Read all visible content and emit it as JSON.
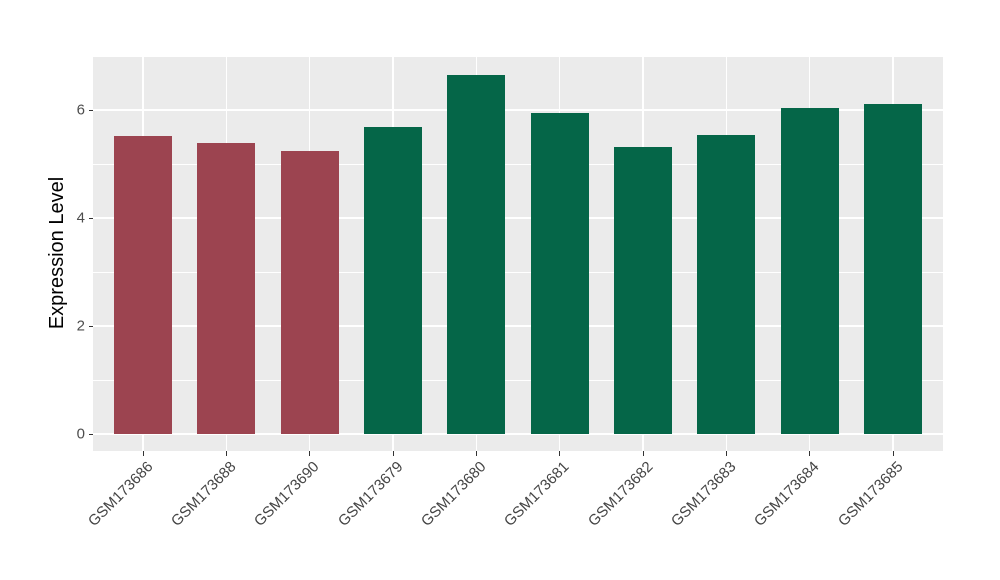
{
  "chart_data": {
    "type": "bar",
    "title": "",
    "xlabel": "",
    "ylabel": "Expression Level",
    "categories": [
      "GSM173686",
      "GSM173688",
      "GSM173690",
      "GSM173679",
      "GSM173680",
      "GSM173681",
      "GSM173682",
      "GSM173683",
      "GSM173684",
      "GSM173685"
    ],
    "values": [
      5.52,
      5.38,
      5.25,
      5.68,
      6.65,
      5.94,
      5.31,
      5.54,
      6.03,
      6.12
    ],
    "bar_colors": [
      "#9C4450",
      "#9C4450",
      "#9C4450",
      "#056648",
      "#056648",
      "#056648",
      "#056648",
      "#056648",
      "#056648",
      "#056648"
    ],
    "y_ticks": [
      0,
      2,
      4,
      6
    ],
    "y_minor_ticks": [
      1,
      3,
      5,
      7
    ],
    "ylim": [
      0,
      7.0
    ],
    "legend": "none",
    "style": {
      "plot_background": "#EBEBEB",
      "page_background": "#FFFFFF",
      "grid_color": "#FFFFFF",
      "tick_mark_color": "#333333",
      "tick_label_color": "#4D4D4D",
      "axis_title_color": "#000000",
      "group_color_left": "#9C4450",
      "group_color_right": "#056648"
    }
  }
}
